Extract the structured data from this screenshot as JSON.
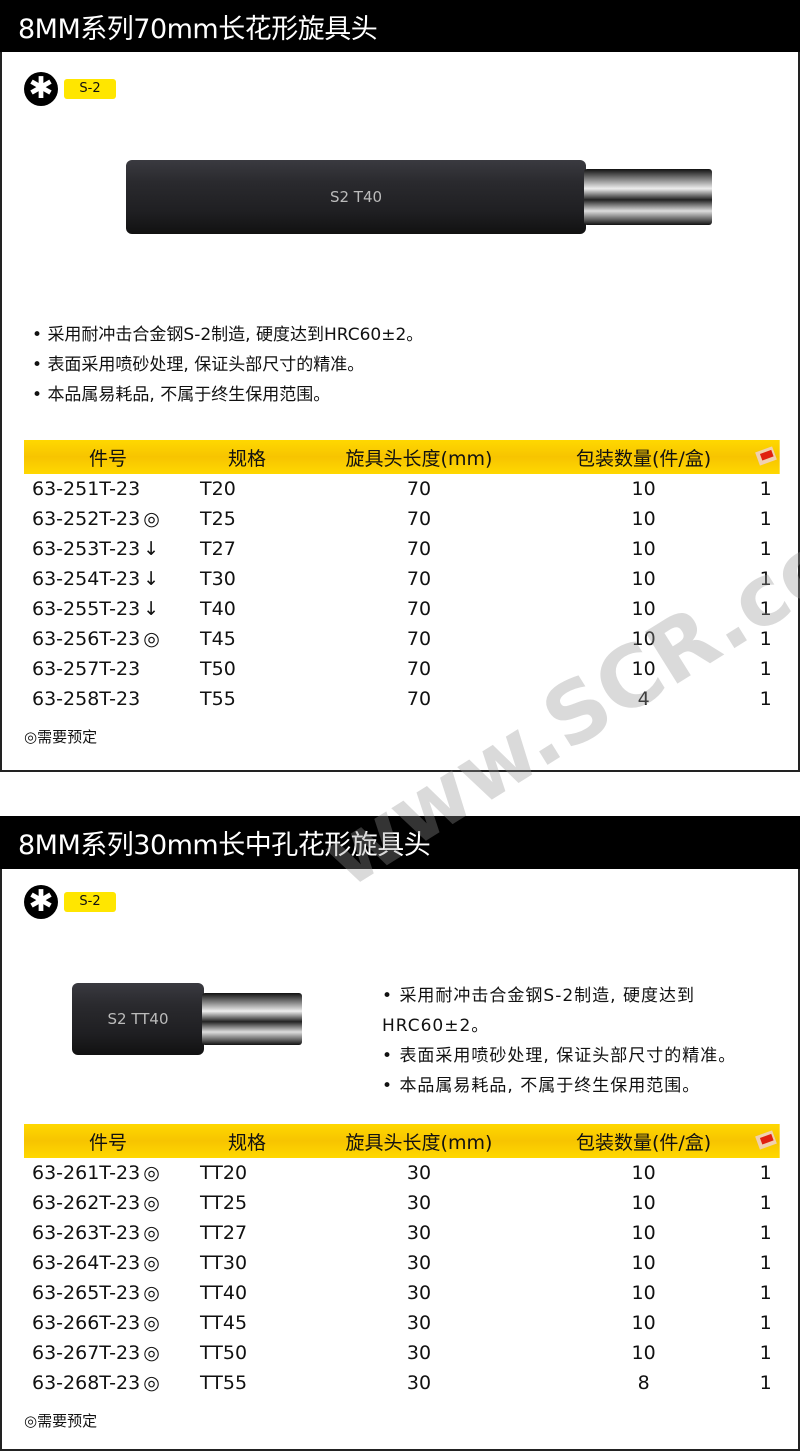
{
  "watermark": "www.SCR.com.cn",
  "sections": [
    {
      "title": "8MM系列70mm长花形旋具头",
      "material_badge": "S-2",
      "bit_marking": "S2 T40",
      "features": [
        "采用耐冲击合金钢S-2制造, 硬度达到HRC60±2。",
        "表面采用喷砂处理, 保证头部尺寸的精准。",
        "本品属易耗品, 不属于终生保用范围。"
      ],
      "columns": [
        "件号",
        "规格",
        "旋具头长度(mm)",
        "包装数量(件/盒)",
        "box-icon"
      ],
      "rows": [
        {
          "part": "63-251T-23",
          "mark": "",
          "spec": "T20",
          "length": "70",
          "qty": "10",
          "unit": "1"
        },
        {
          "part": "63-252T-23",
          "mark": "◎",
          "spec": "T25",
          "length": "70",
          "qty": "10",
          "unit": "1"
        },
        {
          "part": "63-253T-23",
          "mark": "↓",
          "spec": "T27",
          "length": "70",
          "qty": "10",
          "unit": "1"
        },
        {
          "part": "63-254T-23",
          "mark": "↓",
          "spec": "T30",
          "length": "70",
          "qty": "10",
          "unit": "1"
        },
        {
          "part": "63-255T-23",
          "mark": "↓",
          "spec": "T40",
          "length": "70",
          "qty": "10",
          "unit": "1"
        },
        {
          "part": "63-256T-23",
          "mark": "◎",
          "spec": "T45",
          "length": "70",
          "qty": "10",
          "unit": "1"
        },
        {
          "part": "63-257T-23",
          "mark": "",
          "spec": "T50",
          "length": "70",
          "qty": "10",
          "unit": "1"
        },
        {
          "part": "63-258T-23",
          "mark": "",
          "spec": "T55",
          "length": "70",
          "qty": "4",
          "unit": "1"
        }
      ],
      "legend": "◎需要预定"
    },
    {
      "title": "8MM系列30mm长中孔花形旋具头",
      "material_badge": "S-2",
      "bit_marking": "S2 TT40",
      "features": [
        "采用耐冲击合金钢S-2制造, 硬度达到HRC60±2。",
        "表面采用喷砂处理, 保证头部尺寸的精准。",
        "本品属易耗品, 不属于终生保用范围。"
      ],
      "columns": [
        "件号",
        "规格",
        "旋具头长度(mm)",
        "包装数量(件/盒)",
        "box-icon"
      ],
      "rows": [
        {
          "part": "63-261T-23",
          "mark": "◎",
          "spec": "TT20",
          "length": "30",
          "qty": "10",
          "unit": "1"
        },
        {
          "part": "63-262T-23",
          "mark": "◎",
          "spec": "TT25",
          "length": "30",
          "qty": "10",
          "unit": "1"
        },
        {
          "part": "63-263T-23",
          "mark": "◎",
          "spec": "TT27",
          "length": "30",
          "qty": "10",
          "unit": "1"
        },
        {
          "part": "63-264T-23",
          "mark": "◎",
          "spec": "TT30",
          "length": "30",
          "qty": "10",
          "unit": "1"
        },
        {
          "part": "63-265T-23",
          "mark": "◎",
          "spec": "TT40",
          "length": "30",
          "qty": "10",
          "unit": "1"
        },
        {
          "part": "63-266T-23",
          "mark": "◎",
          "spec": "TT45",
          "length": "30",
          "qty": "10",
          "unit": "1"
        },
        {
          "part": "63-267T-23",
          "mark": "◎",
          "spec": "TT50",
          "length": "30",
          "qty": "10",
          "unit": "1"
        },
        {
          "part": "63-268T-23",
          "mark": "◎",
          "spec": "TT55",
          "length": "30",
          "qty": "8",
          "unit": "1"
        }
      ],
      "legend": "◎需要预定"
    }
  ],
  "colors": {
    "header_bg": "#000000",
    "table_header": "#f7c400",
    "badge": "#ffe600"
  }
}
